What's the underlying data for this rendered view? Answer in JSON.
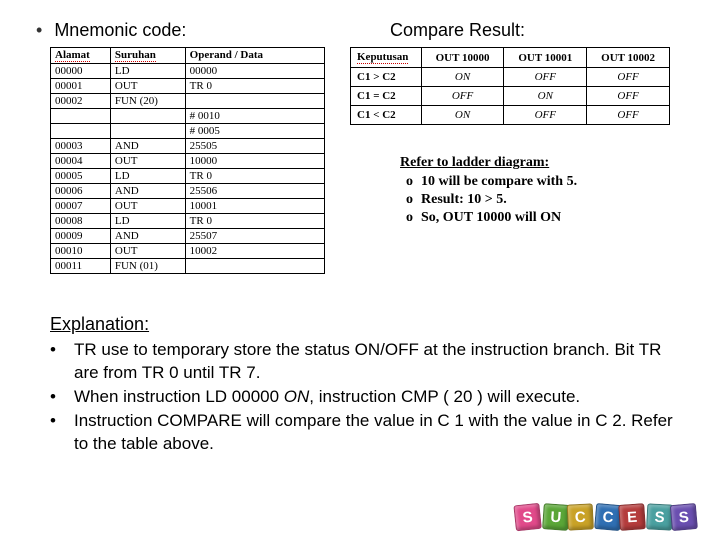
{
  "headings": {
    "mnemonic": "Mnemonic code:",
    "compare": "Compare Result:",
    "explanation": "Explanation:",
    "refer": "Refer to ladder diagram:"
  },
  "mnemonic_table": {
    "headers": [
      "Alamat",
      "Suruhan",
      "Operand / Data"
    ],
    "rows": [
      [
        "00000",
        "LD",
        "00000"
      ],
      [
        "00001",
        "OUT",
        "TR 0"
      ],
      [
        "00002",
        "FUN (20)",
        ""
      ],
      [
        "",
        "",
        "# 0010"
      ],
      [
        "",
        "",
        "# 0005"
      ],
      [
        "00003",
        "AND",
        "25505"
      ],
      [
        "00004",
        "OUT",
        "10000"
      ],
      [
        "00005",
        "LD",
        "TR 0"
      ],
      [
        "00006",
        "AND",
        "25506"
      ],
      [
        "00007",
        "OUT",
        "10001"
      ],
      [
        "00008",
        "LD",
        "TR 0"
      ],
      [
        "00009",
        "AND",
        "25507"
      ],
      [
        "00010",
        "OUT",
        "10002"
      ],
      [
        "00011",
        "FUN (01)",
        ""
      ]
    ]
  },
  "result_table": {
    "headers": [
      "Keputusan",
      "OUT 10000",
      "OUT 10001",
      "OUT 10002"
    ],
    "rows": [
      [
        "C1 > C2",
        "ON",
        "OFF",
        "OFF"
      ],
      [
        "C1 = C2",
        "OFF",
        "ON",
        "OFF"
      ],
      [
        "C1 < C2",
        "ON",
        "OFF",
        "OFF"
      ]
    ]
  },
  "refer_items": [
    "10 will be compare with 5.",
    "Result: 10 > 5.",
    "So, OUT 10000 will ON"
  ],
  "explanation_items": [
    {
      "pre": "TR use to temporary store the status ON/OFF at the instruction branch. Bit TR are from TR 0 until TR 7."
    },
    {
      "pre": "When instruction LD 00000 ",
      "ital": "ON",
      "post": ", instruction CMP ( 20 ) will execute."
    },
    {
      "pre": "Instruction COMPARE will compare the value in C 1 with the value in C 2. Refer to the table above."
    }
  ],
  "success": {
    "letters": [
      "S",
      "U",
      "C",
      "C",
      "E",
      "S",
      "S"
    ],
    "colors": [
      "#e14a8a",
      "#5aa637",
      "#c9a227",
      "#2f6fb3",
      "#b43c3c",
      "#4aa0a0",
      "#6a4fb0"
    ],
    "rotations": [
      -6,
      4,
      -3,
      5,
      -4,
      3,
      -5
    ]
  }
}
